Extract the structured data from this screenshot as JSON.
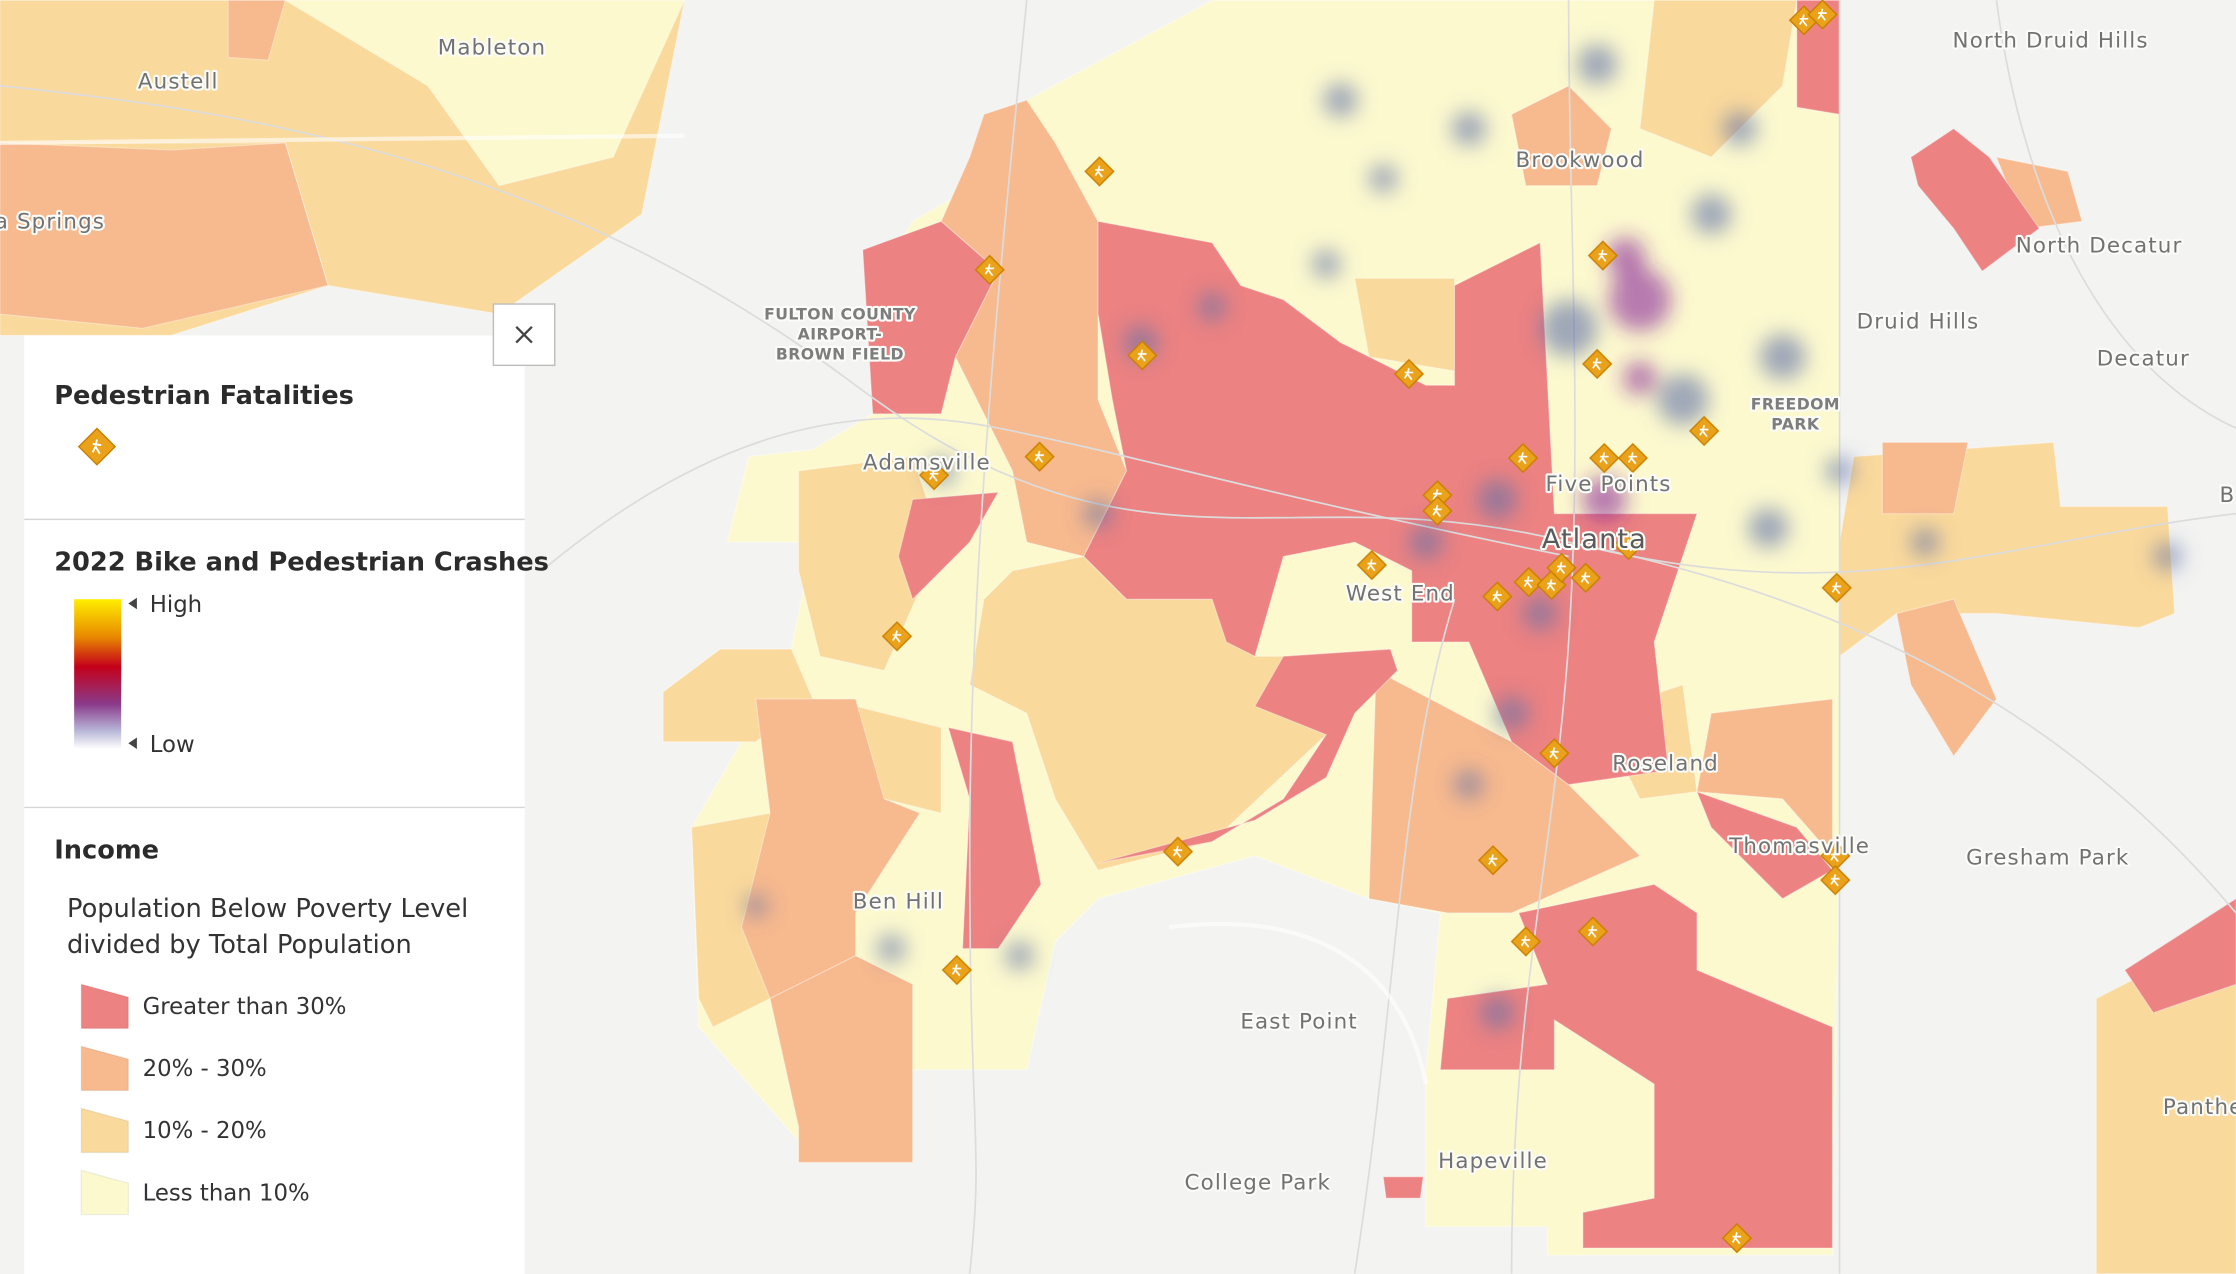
{
  "map": {
    "places": [
      "Mableton",
      "Austell",
      "a Springs",
      "North Druid Hills",
      "Brookwood",
      "North Decatur",
      "Druid Hills",
      "Decatur",
      "Adamsville",
      "Five Points",
      "Atlanta",
      "West End",
      "Roseland",
      "Thomasville",
      "Gresham Park",
      "Ben Hill",
      "East Point",
      "Hapeville",
      "College Park",
      "Panthe",
      "B"
    ],
    "facilities": [
      [
        "FULTON COUNTY",
        "AIRPORT-",
        "BROWN FIELD"
      ],
      [
        "FREEDOM",
        "PARK"
      ]
    ]
  },
  "legend": {
    "fatalities_title": "Pedestrian Fatalities",
    "crashes_title": "2022 Bike and Pedestrian Crashes",
    "high": "High",
    "low": "Low",
    "income_title": "Income",
    "description": [
      "Population Below Poverty Level",
      "divided by Total Population"
    ],
    "classes": [
      {
        "label": "Greater than 30%",
        "color": "#ec8282"
      },
      {
        "label": "20% - 30%",
        "color": "#f7b98e"
      },
      {
        "label": "10% - 20%",
        "color": "#fad99c"
      },
      {
        "label": "Less than 10%",
        "color": "#fcf9cf"
      }
    ]
  }
}
